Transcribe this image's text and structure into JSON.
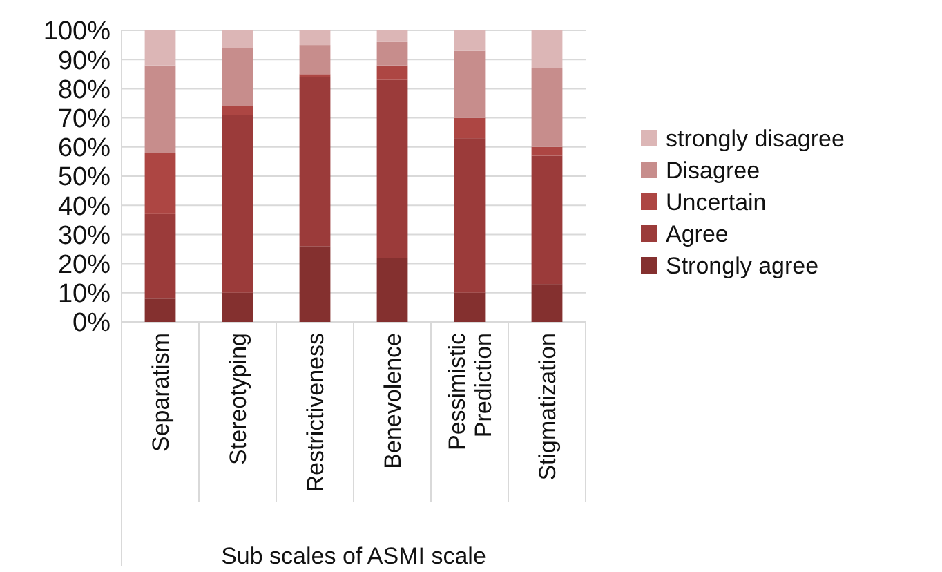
{
  "chart_data": {
    "type": "bar",
    "stacked": true,
    "xlabel": "Sub scales of ASMI scale",
    "categories": [
      "Separatism",
      "Stereotyping",
      "Restrictiveness",
      "Benevolence",
      "Pessimistic Prediction",
      "Stigmatization"
    ],
    "series": [
      {
        "name": "Strongly agree",
        "color": "#84302f",
        "values": [
          8,
          10,
          26,
          22,
          10,
          13
        ]
      },
      {
        "name": "Agree",
        "color": "#9b3b3a",
        "values": [
          29,
          61,
          58,
          61,
          53,
          44
        ]
      },
      {
        "name": "Uncertain",
        "color": "#ad4643",
        "values": [
          21,
          3,
          1,
          5,
          7,
          3
        ]
      },
      {
        "name": "Disagree",
        "color": "#c78d8c",
        "values": [
          30,
          20,
          10,
          8,
          23,
          27
        ]
      },
      {
        "name": "strongly disagree",
        "color": "#dcb6b6",
        "values": [
          12,
          6,
          5,
          4,
          7,
          13
        ]
      }
    ],
    "ylim": [
      0,
      100
    ],
    "yticks": [
      {
        "value": 0,
        "label": "0%"
      },
      {
        "value": 10,
        "label": "10%"
      },
      {
        "value": 20,
        "label": "20%"
      },
      {
        "value": 30,
        "label": "30%"
      },
      {
        "value": 40,
        "label": "40%"
      },
      {
        "value": 50,
        "label": "50%"
      },
      {
        "value": 60,
        "label": "60%"
      },
      {
        "value": 70,
        "label": "70%"
      },
      {
        "value": 80,
        "label": "80%"
      },
      {
        "value": 90,
        "label": "90%"
      },
      {
        "value": 100,
        "label": "100%"
      }
    ],
    "grid": "y",
    "legend": "right"
  }
}
